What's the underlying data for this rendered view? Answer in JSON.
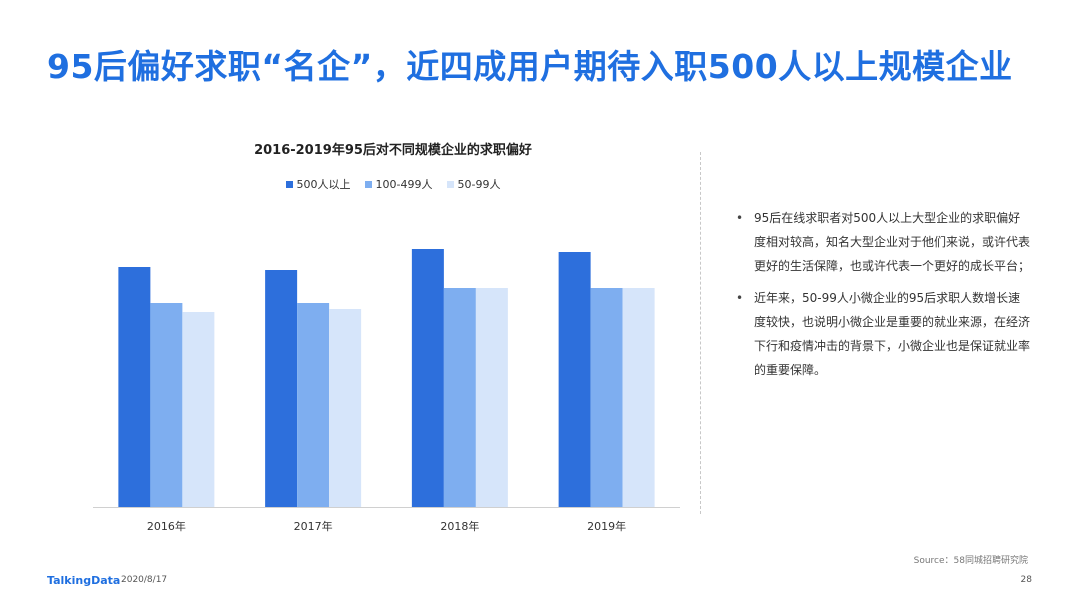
{
  "slide": {
    "title": "95后偏好求职“名企”，近四成用户期待入职500人以上规模企业",
    "source": "Source：58同城招聘研究院",
    "footer": {
      "brand": "TalkingData",
      "date": "2020/8/17",
      "page": "28"
    }
  },
  "notes": [
    "95后在线求职者对500人以上大型企业的求职偏好度相对较高，知名大型企业对于他们来说，或许代表更好的生活保障，也或许代表一个更好的成长平台；",
    "近年来，50-99人小微企业的95后求职人数增长速度较快，也说明小微企业是重要的就业来源，在经济下行和疫情冲击的背景下，小微企业也是保证就业率的重要保障。"
  ],
  "chart_data": {
    "type": "bar",
    "title": "2016-2019年95后对不同规模企业的求职偏好",
    "categories": [
      "2016年",
      "2017年",
      "2018年",
      "2019年"
    ],
    "series": [
      {
        "name": "500人以上",
        "color": "#2d6fdc",
        "values": [
          40,
          39.5,
          43,
          42.5
        ]
      },
      {
        "name": "100-499人",
        "color": "#7eaef0",
        "values": [
          34,
          34,
          36.5,
          36.5
        ]
      },
      {
        "name": "50-99人",
        "color": "#d6e5fa",
        "values": [
          32.5,
          33,
          36.5,
          36.5
        ]
      }
    ],
    "ylim": [
      0,
      55
    ],
    "xlabel": "",
    "ylabel": "",
    "grid": false,
    "legend": "top"
  }
}
